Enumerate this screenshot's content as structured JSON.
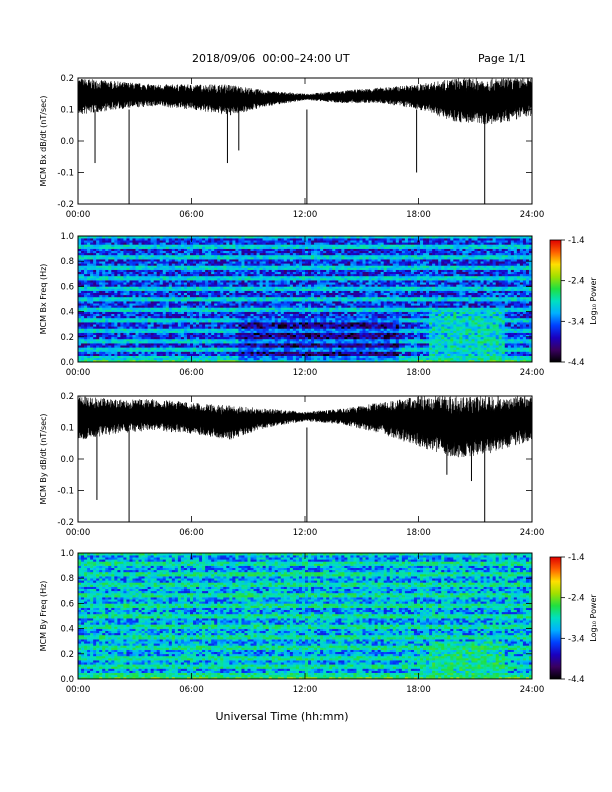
{
  "header": {
    "title": "2018/09/06  00:00–24:00 UT",
    "page": "Page 1/1"
  },
  "xaxis": {
    "label": "Universal Time (hh:mm)",
    "ticks": [
      "00:00",
      "06:00",
      "12:00",
      "18:00",
      "24:00"
    ],
    "range_hours": [
      0,
      24
    ]
  },
  "colorscale": {
    "title": "Log₁₀ Power",
    "ticks": [
      "-1.4",
      "-2.4",
      "-3.4",
      "-4.4"
    ],
    "range": [
      -4.4,
      -1.4
    ],
    "colors": [
      "#000000",
      "#3a0060",
      "#1a00c0",
      "#0040ff",
      "#00b0ff",
      "#00e0c0",
      "#20e040",
      "#a0e000",
      "#ffe000",
      "#ff6000",
      "#e00000"
    ]
  },
  "chart_data": [
    {
      "type": "line",
      "panel": "bx-timeseries",
      "ylabel": "MCM Bx dB/dt (nT/sec)",
      "yticks": [
        "0.2",
        "0.1",
        "0.0",
        "-0.1",
        "-0.2"
      ],
      "ylim": [
        -0.2,
        0.2
      ],
      "xlim": [
        0,
        24
      ],
      "envelope_hours": [
        0,
        2,
        4,
        6,
        8,
        10,
        12,
        14,
        16,
        18,
        20,
        22,
        24
      ],
      "envelope_upper": [
        0.2,
        0.19,
        0.18,
        0.18,
        0.18,
        0.16,
        0.15,
        0.16,
        0.17,
        0.18,
        0.2,
        0.2,
        0.2
      ],
      "envelope_lower": [
        0.08,
        0.1,
        0.11,
        0.1,
        0.08,
        0.11,
        0.13,
        0.12,
        0.12,
        0.1,
        0.06,
        0.05,
        0.08
      ],
      "spikes": [
        {
          "x": 0.9,
          "y": -0.07
        },
        {
          "x": 2.7,
          "y": -0.2
        },
        {
          "x": 7.9,
          "y": -0.07
        },
        {
          "x": 8.5,
          "y": -0.03
        },
        {
          "x": 12.1,
          "y": -0.2
        },
        {
          "x": 17.9,
          "y": -0.1
        },
        {
          "x": 21.5,
          "y": -0.2
        }
      ]
    },
    {
      "type": "heatmap",
      "panel": "bx-spectrogram",
      "ylabel": "MCM Bx Freq (Hz)",
      "yticks": [
        "1.0",
        "0.8",
        "0.6",
        "0.4",
        "0.2",
        "0.0"
      ],
      "ylim": [
        0,
        1.0
      ],
      "xlim": [
        0,
        24
      ],
      "zlim": [
        -4.4,
        -1.4
      ],
      "background_level": -3.6,
      "line_frequencies_hz": [
        0.03,
        0.1,
        0.17,
        0.25,
        0.33,
        0.42,
        0.5,
        0.58,
        0.67,
        0.75,
        0.83,
        0.92,
        1.0
      ],
      "line_level": -3.0,
      "enhanced_region": {
        "hours": [
          18.5,
          22.5
        ],
        "freq_hz": [
          0.0,
          0.4
        ],
        "level": -3.0
      },
      "low_freq_level": -2.6
    },
    {
      "type": "line",
      "panel": "by-timeseries",
      "ylabel": "MCM By dB/dt (nT/sec)",
      "yticks": [
        "0.2",
        "0.1",
        "0.0",
        "-0.1",
        "-0.2"
      ],
      "ylim": [
        -0.2,
        0.2
      ],
      "xlim": [
        0,
        24
      ],
      "envelope_hours": [
        0,
        2,
        4,
        6,
        8,
        10,
        12,
        14,
        16,
        18,
        20,
        22,
        24
      ],
      "envelope_upper": [
        0.2,
        0.19,
        0.19,
        0.18,
        0.17,
        0.16,
        0.15,
        0.16,
        0.18,
        0.2,
        0.2,
        0.2,
        0.2
      ],
      "envelope_lower": [
        0.06,
        0.08,
        0.09,
        0.08,
        0.06,
        0.1,
        0.12,
        0.11,
        0.08,
        0.04,
        0.0,
        0.02,
        0.06
      ],
      "spikes": [
        {
          "x": 1.0,
          "y": -0.13
        },
        {
          "x": 2.7,
          "y": -0.2
        },
        {
          "x": 12.1,
          "y": -0.2
        },
        {
          "x": 19.5,
          "y": -0.05
        },
        {
          "x": 21.5,
          "y": -0.2
        },
        {
          "x": 20.8,
          "y": -0.07
        }
      ]
    },
    {
      "type": "heatmap",
      "panel": "by-spectrogram",
      "ylabel": "MCM By Freq (Hz)",
      "yticks": [
        "1.0",
        "0.8",
        "0.6",
        "0.4",
        "0.2",
        "0.0"
      ],
      "ylim": [
        0,
        1.0
      ],
      "xlim": [
        0,
        24
      ],
      "zlim": [
        -4.4,
        -1.4
      ],
      "background_level": -3.2,
      "line_frequencies_hz": [
        0.03,
        0.1,
        0.17,
        0.25,
        0.33,
        0.42,
        0.5,
        0.58,
        0.67,
        0.75,
        0.83,
        0.92,
        1.0
      ],
      "line_level": -2.8,
      "enhanced_region": {
        "hours": [
          18.5,
          22.5
        ],
        "freq_hz": [
          0.0,
          0.3
        ],
        "level": -2.9
      },
      "low_freq_level": -2.5
    }
  ]
}
